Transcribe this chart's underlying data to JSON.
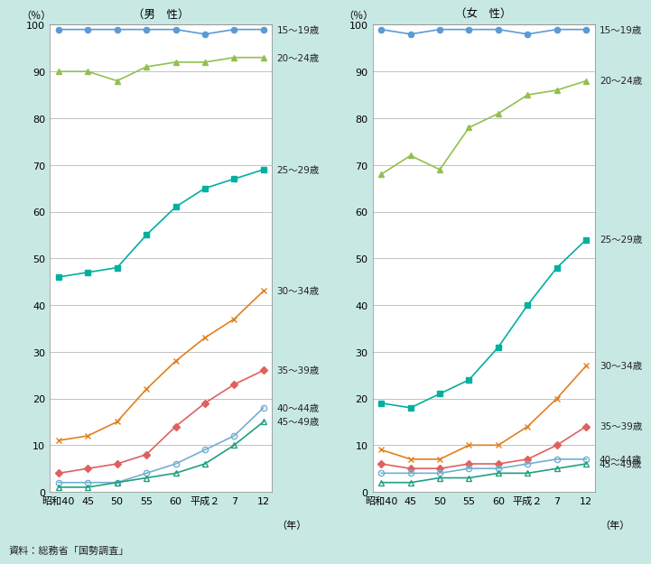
{
  "title_male": "（男　性）",
  "title_female": "（女　性）",
  "xlabel": "（年）",
  "ylabel": "（％）",
  "footnote": "資料：総務省「国勢調査」",
  "x_labels": [
    "昭和40",
    "45",
    "50",
    "55",
    "60",
    "平成２",
    "7",
    "12"
  ],
  "x_values": [
    0,
    1,
    2,
    3,
    4,
    5,
    6,
    7
  ],
  "background_color": "#c8e8e4",
  "plot_background": "#ffffff",
  "ylim": [
    0,
    100
  ],
  "series_male": {
    "15-19": {
      "values": [
        99,
        99,
        99,
        99,
        99,
        98,
        99,
        99
      ],
      "color": "#5b9bd5",
      "marker": "o",
      "markerfacecolor": "#5b9bd5",
      "label": "15～19歳"
    },
    "20-24": {
      "values": [
        90,
        90,
        88,
        91,
        92,
        92,
        93,
        93
      ],
      "color": "#92c050",
      "marker": "^",
      "markerfacecolor": "#92c050",
      "label": "20～24歳"
    },
    "25-29": {
      "values": [
        46,
        47,
        48,
        55,
        61,
        65,
        67,
        69
      ],
      "color": "#00b0a0",
      "marker": "s",
      "markerfacecolor": "#00b0a0",
      "label": "25～29歳"
    },
    "30-34": {
      "values": [
        11,
        12,
        15,
        22,
        28,
        33,
        37,
        43
      ],
      "color": "#e08020",
      "marker": "x",
      "markerfacecolor": "#e08020",
      "label": "30～34歳"
    },
    "35-39": {
      "values": [
        4,
        5,
        6,
        8,
        14,
        19,
        23,
        26
      ],
      "color": "#e06060",
      "marker": "D",
      "markerfacecolor": "#e06060",
      "label": "35～39歳"
    },
    "40-44": {
      "values": [
        2,
        2,
        2,
        4,
        6,
        9,
        12,
        18
      ],
      "color": "#70b0d0",
      "marker": "o",
      "markerfacecolor": "none",
      "label": "40～44歳"
    },
    "45-49": {
      "values": [
        1,
        1,
        2,
        3,
        4,
        6,
        10,
        15
      ],
      "color": "#20a080",
      "marker": "^",
      "markerfacecolor": "none",
      "label": "45～49歳"
    }
  },
  "series_female": {
    "15-19": {
      "values": [
        99,
        98,
        99,
        99,
        99,
        98,
        99,
        99
      ],
      "color": "#5b9bd5",
      "marker": "o",
      "markerfacecolor": "#5b9bd5",
      "label": "15～19歳"
    },
    "20-24": {
      "values": [
        68,
        72,
        69,
        78,
        81,
        85,
        86,
        88
      ],
      "color": "#92c050",
      "marker": "^",
      "markerfacecolor": "#92c050",
      "label": "20～24歳"
    },
    "25-29": {
      "values": [
        19,
        18,
        21,
        24,
        31,
        40,
        48,
        54
      ],
      "color": "#00b0a0",
      "marker": "s",
      "markerfacecolor": "#00b0a0",
      "label": "25～29歳"
    },
    "30-34": {
      "values": [
        9,
        7,
        7,
        10,
        10,
        14,
        20,
        27
      ],
      "color": "#e08020",
      "marker": "x",
      "markerfacecolor": "#e08020",
      "label": "30～34歳"
    },
    "35-39": {
      "values": [
        6,
        5,
        5,
        6,
        6,
        7,
        10,
        14
      ],
      "color": "#e06060",
      "marker": "D",
      "markerfacecolor": "#e06060",
      "label": "35～39歳"
    },
    "40-44": {
      "values": [
        4,
        4,
        4,
        5,
        5,
        6,
        7,
        7
      ],
      "color": "#70b0d0",
      "marker": "o",
      "markerfacecolor": "none",
      "label": "40～44歳"
    },
    "45-49": {
      "values": [
        2,
        2,
        3,
        3,
        4,
        4,
        5,
        6
      ],
      "color": "#20a080",
      "marker": "^",
      "markerfacecolor": "none",
      "label": "45～49歳"
    }
  }
}
